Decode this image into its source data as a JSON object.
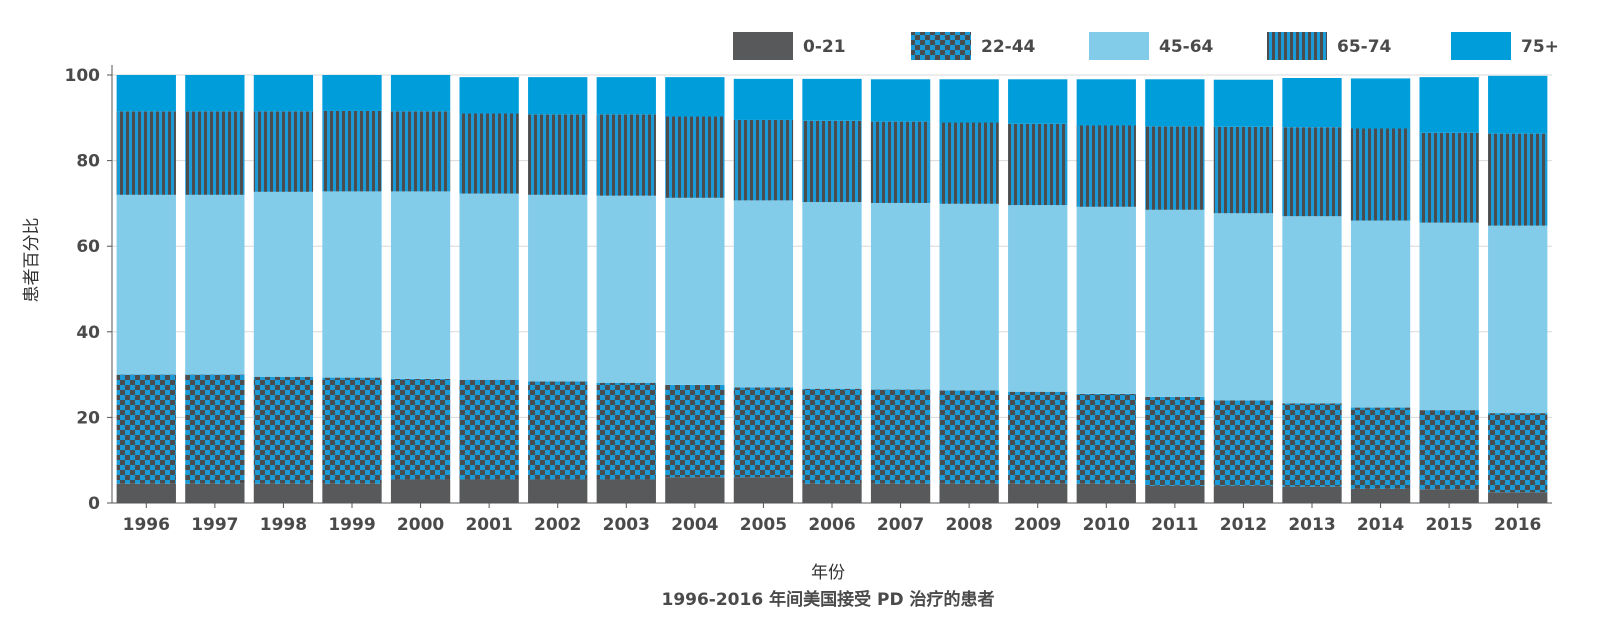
{
  "chart_data": {
    "type": "bar",
    "stacked": true,
    "title": "",
    "xlabel": "年份",
    "ylabel": "患者百分比",
    "caption": "1996-2016 年间美国接受 PD 治疗的患者",
    "ylim": [
      0,
      100
    ],
    "yticks": [
      "0",
      "20",
      "40",
      "60",
      "80",
      "100"
    ],
    "grid": true,
    "legend_position": "top-right",
    "categories": [
      "1996",
      "1997",
      "1998",
      "1999",
      "2000",
      "2001",
      "2002",
      "2003",
      "2004",
      "2005",
      "2006",
      "2007",
      "2008",
      "2009",
      "2010",
      "2011",
      "2012",
      "2013",
      "2014",
      "2015",
      "2016"
    ],
    "series": [
      {
        "name": "0-21",
        "color": "#58595b",
        "pattern": "solid",
        "values": [
          4.5,
          4.5,
          4.5,
          4.5,
          5.5,
          5.5,
          5.5,
          5.5,
          6.0,
          6.0,
          4.5,
          4.5,
          4.5,
          4.5,
          4.5,
          4.0,
          4.0,
          3.8,
          3.3,
          3.2,
          2.5
        ]
      },
      {
        "name": "22-44",
        "color": "#1a9ad6",
        "pattern": "checker",
        "values": [
          25.5,
          25.5,
          25.0,
          24.8,
          23.5,
          23.3,
          22.9,
          22.6,
          21.6,
          21.0,
          22.2,
          22.0,
          21.8,
          21.5,
          21.0,
          20.8,
          20.0,
          19.5,
          19.0,
          18.5,
          18.5
        ]
      },
      {
        "name": "45-64",
        "color": "#82ccea",
        "pattern": "solid",
        "values": [
          42.0,
          42.0,
          43.2,
          43.5,
          43.8,
          43.5,
          43.6,
          43.7,
          43.7,
          43.7,
          43.6,
          43.6,
          43.6,
          43.6,
          43.7,
          43.7,
          43.7,
          43.7,
          43.7,
          43.8,
          43.8
        ]
      },
      {
        "name": "65-74",
        "color": "#1a9ad6",
        "pattern": "stripe",
        "values": [
          19.5,
          19.5,
          18.8,
          18.8,
          18.7,
          18.7,
          18.8,
          19.0,
          19.0,
          18.8,
          19.0,
          19.0,
          19.0,
          19.0,
          19.0,
          19.5,
          20.2,
          20.8,
          21.5,
          21.0,
          21.5
        ]
      },
      {
        "name": "75+",
        "color": "#009ddb",
        "pattern": "solid",
        "values": [
          8.5,
          8.5,
          8.5,
          8.4,
          8.5,
          8.5,
          8.7,
          8.7,
          9.2,
          9.6,
          9.8,
          9.9,
          10.1,
          10.4,
          10.8,
          11.0,
          11.0,
          11.5,
          11.7,
          13.0,
          13.5
        ]
      }
    ]
  }
}
